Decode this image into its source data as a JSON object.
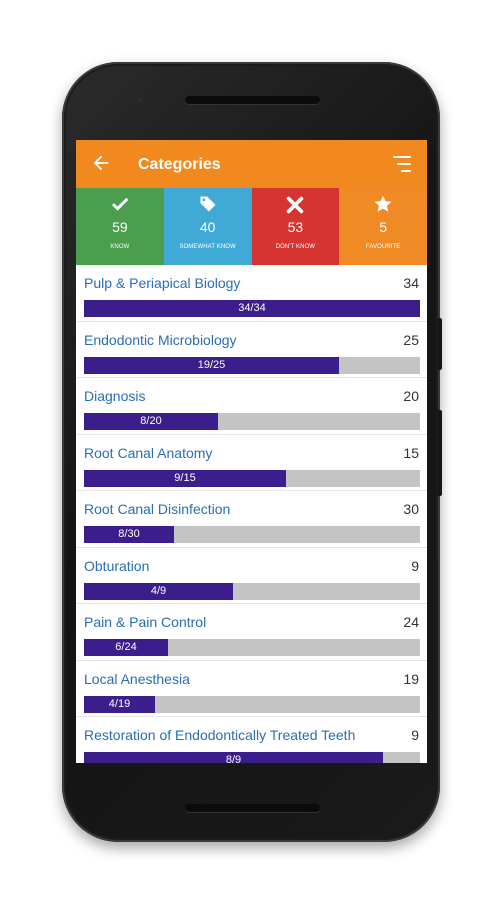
{
  "app_bar": {
    "title": "Categories",
    "back_icon": "arrow-left-icon",
    "menu_icon": "sort-menu-icon"
  },
  "summary_tiles": [
    {
      "count": "59",
      "label": "KNOW",
      "icon": "check-icon",
      "color": "#4a9e4e"
    },
    {
      "count": "40",
      "label": "SOMEWHAT KNOW",
      "icon": "tags-icon",
      "color": "#41a9d6"
    },
    {
      "count": "53",
      "label": "DON'T KNOW",
      "icon": "x-icon",
      "color": "#d63431"
    },
    {
      "count": "5",
      "label": "FAVOURITE",
      "icon": "star-icon",
      "color": "#f08a24"
    }
  ],
  "categories": [
    {
      "name": "Pulp & Periapical Biology",
      "total": "34",
      "done_label": "34/34",
      "progress": 1.0
    },
    {
      "name": "Endodontic Microbiology",
      "total": "25",
      "done_label": "19/25",
      "progress": 0.76
    },
    {
      "name": "Diagnosis",
      "total": "20",
      "done_label": "8/20",
      "progress": 0.4
    },
    {
      "name": "Root Canal Anatomy",
      "total": "15",
      "done_label": "9/15",
      "progress": 0.6
    },
    {
      "name": "Root Canal Disinfection",
      "total": "30",
      "done_label": "8/30",
      "progress": 0.267
    },
    {
      "name": "Obturation",
      "total": "9",
      "done_label": "4/9",
      "progress": 0.444
    },
    {
      "name": "Pain & Pain Control",
      "total": "24",
      "done_label": "6/24",
      "progress": 0.25
    },
    {
      "name": "Local Anesthesia",
      "total": "19",
      "done_label": "4/19",
      "progress": 0.211
    },
    {
      "name": "Restoration of Endodontically Treated Teeth",
      "total": "9",
      "done_label": "8/9",
      "progress": 0.889
    }
  ]
}
